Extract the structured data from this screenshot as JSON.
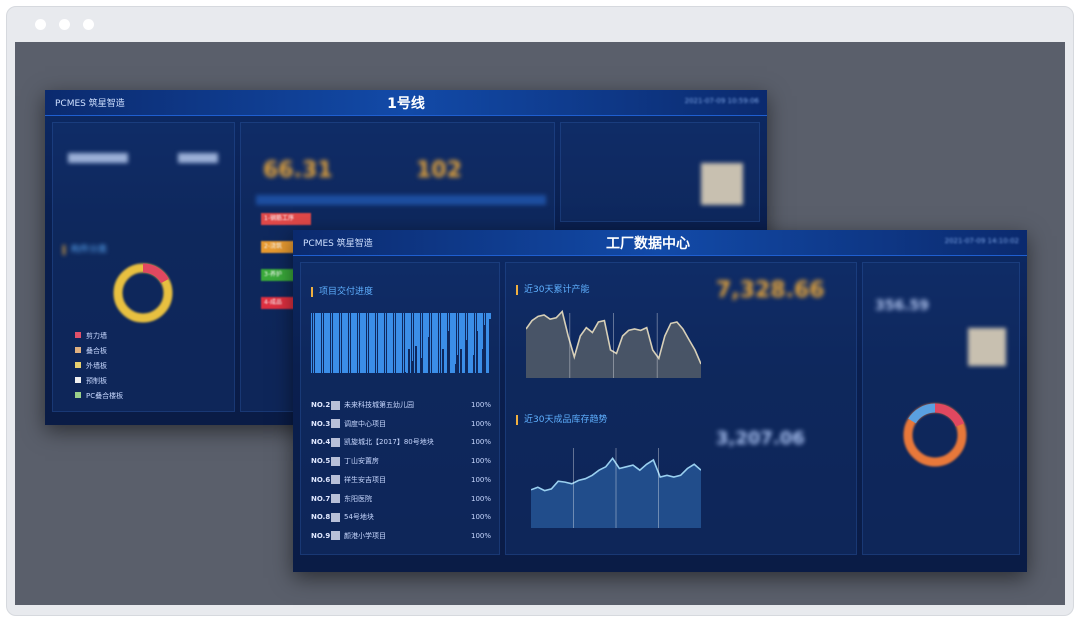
{
  "back": {
    "brand": "PCMES 筑星智造",
    "title": "1号线",
    "time": "2021-07-09 10:59:06",
    "big1": "66.31",
    "big2": "102",
    "left_panel_title": "构件分类",
    "legend": [
      {
        "label": "剪力墙",
        "color": "#e0506a"
      },
      {
        "label": "叠合板",
        "color": "#e0b080"
      },
      {
        "label": "外墙板",
        "color": "#e8d070"
      },
      {
        "label": "预制板",
        "color": "#f0f0f0"
      },
      {
        "label": "PC叠合楼板",
        "color": "#9ad08a"
      }
    ],
    "tags": [
      {
        "label": "1-钢筋工序",
        "color": "#e04848"
      },
      {
        "label": "2-浇筑",
        "color": "#e89a30"
      },
      {
        "label": "3-养护",
        "color": "#3aaa3a"
      },
      {
        "label": "4-成品",
        "color": "#e03040"
      }
    ]
  },
  "front": {
    "brand": "PCMES 筑星智造",
    "title": "工厂数据中心",
    "time": "2021-07-09 14:10:02",
    "panel_delivery": "项目交付进度",
    "panel_capacity": "近30天累计产能",
    "panel_inventory": "近30天成品库存趋势",
    "capacity_total": "7,328.66",
    "inventory_total": "3,207.06",
    "right_total": "356.59",
    "projects": [
      {
        "no": "NO.2",
        "name": "未来科技城第五幼儿园",
        "pct": "100%"
      },
      {
        "no": "NO.3",
        "name": "调度中心项目",
        "pct": "100%"
      },
      {
        "no": "NO.4",
        "name": "凯旋城北【2017】80号地块",
        "pct": "100%"
      },
      {
        "no": "NO.5",
        "name": "丁山安置房",
        "pct": "100%"
      },
      {
        "no": "NO.6",
        "name": "祥生安吉项目",
        "pct": "100%"
      },
      {
        "no": "NO.7",
        "name": "东阳医院",
        "pct": "100%"
      },
      {
        "no": "NO.8",
        "name": "54号地块",
        "pct": "100%"
      },
      {
        "no": "NO.9",
        "name": "颜港小学项目",
        "pct": "100%"
      }
    ],
    "delivery_bars": [
      100,
      100,
      100,
      100,
      100,
      100,
      100,
      100,
      100,
      100,
      100,
      100,
      100,
      100,
      100,
      100,
      100,
      100,
      100,
      100,
      100,
      100,
      100,
      100,
      100,
      100,
      100,
      100,
      100,
      100,
      100,
      100,
      100,
      100,
      100,
      100,
      100,
      100,
      100,
      100,
      100,
      100,
      100,
      100,
      100,
      100,
      100,
      100,
      100,
      100,
      100,
      100,
      98,
      100,
      60,
      100,
      80,
      100,
      55,
      100,
      100,
      75,
      100,
      100,
      100,
      40,
      100,
      100,
      100,
      100,
      100,
      100,
      100,
      60,
      100,
      100,
      30,
      100,
      100,
      100,
      85,
      70,
      100,
      60,
      100,
      100,
      45,
      100,
      100,
      100,
      70,
      100,
      30,
      100,
      100,
      60,
      20,
      100,
      100,
      10
    ],
    "capacity_series": [
      70,
      82,
      88,
      90,
      84,
      86,
      95,
      60,
      30,
      60,
      72,
      65,
      80,
      82,
      40,
      35,
      60,
      68,
      70,
      68,
      72,
      40,
      28,
      60,
      78,
      80,
      70,
      55,
      40,
      20
    ],
    "inventory_series": [
      45,
      48,
      44,
      46,
      55,
      54,
      52,
      56,
      58,
      62,
      68,
      72,
      82,
      70,
      72,
      74,
      68,
      75,
      80,
      60,
      62,
      60,
      62,
      70,
      75,
      68
    ]
  }
}
